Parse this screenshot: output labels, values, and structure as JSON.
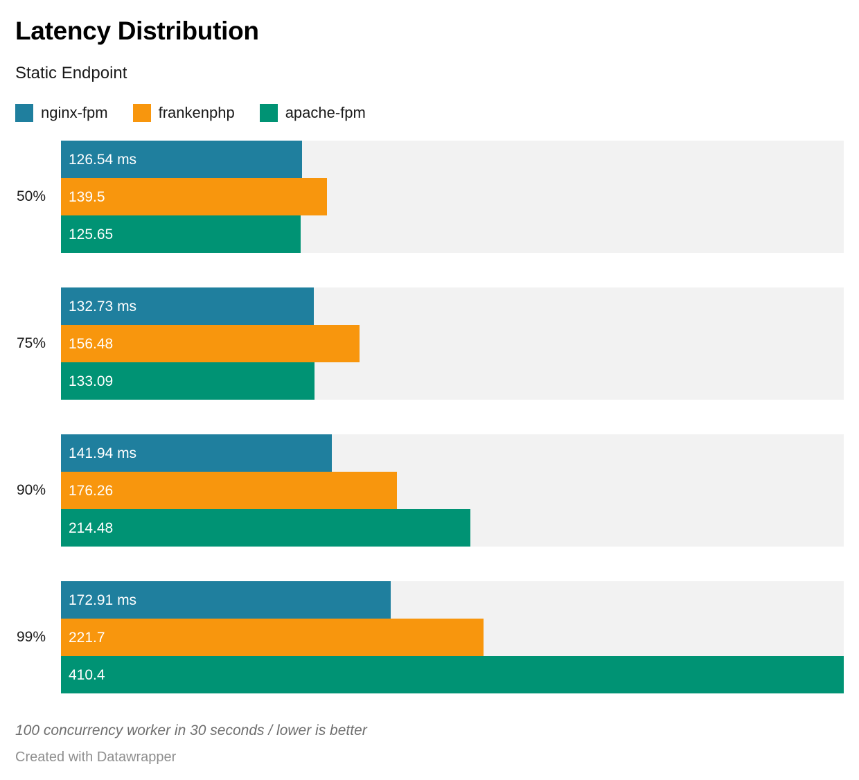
{
  "title": "Latency Distribution",
  "subtitle": "Static Endpoint",
  "legend": [
    {
      "label": "nginx-fpm",
      "color": "#1f7f9e"
    },
    {
      "label": "frankenphp",
      "color": "#f8960d"
    },
    {
      "label": "apache-fpm",
      "color": "#009374"
    }
  ],
  "chart_data": {
    "type": "bar",
    "orientation": "horizontal",
    "title": "Latency Distribution",
    "subtitle": "Static Endpoint",
    "unit": "ms",
    "categories": [
      "50%",
      "75%",
      "90%",
      "99%"
    ],
    "series": [
      {
        "name": "nginx-fpm",
        "color": "#1f7f9e",
        "values": [
          126.54,
          132.73,
          141.94,
          172.91
        ],
        "labels": [
          "126.54 ms",
          "132.73 ms",
          "141.94 ms",
          "172.91 ms"
        ]
      },
      {
        "name": "frankenphp",
        "color": "#f8960d",
        "values": [
          139.5,
          156.48,
          176.26,
          221.7
        ],
        "labels": [
          "139.5",
          "156.48",
          "176.26",
          "221.7"
        ]
      },
      {
        "name": "apache-fpm",
        "color": "#009374",
        "values": [
          125.65,
          133.09,
          214.48,
          410.4
        ],
        "labels": [
          "125.65",
          "133.09",
          "214.48",
          "410.4"
        ]
      }
    ],
    "xlim": [
      0,
      410.4
    ],
    "grid": false,
    "legend_position": "top",
    "track_color": "#f2f2f2"
  },
  "footer": {
    "note": "100 concurrency worker in 30 seconds / lower is better",
    "credit": "Created with Datawrapper"
  }
}
